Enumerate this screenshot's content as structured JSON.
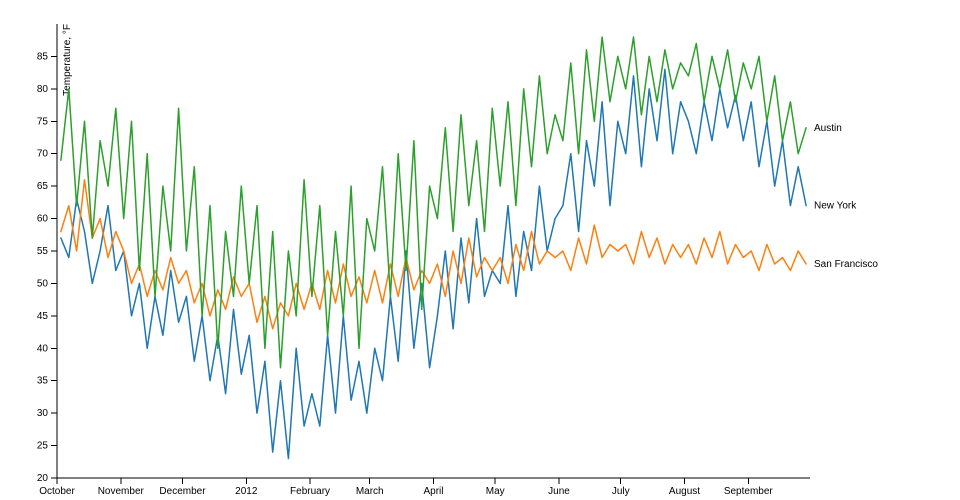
{
  "chart_data": {
    "type": "line",
    "title": "",
    "xlabel": "",
    "ylabel": "Temperature, °F",
    "grid": false,
    "legend": "line-end-labels",
    "y_domain": [
      20,
      90
    ],
    "y_ticks": [
      20,
      25,
      30,
      35,
      40,
      45,
      50,
      55,
      60,
      65,
      70,
      75,
      80,
      85
    ],
    "x_range_days": 366,
    "x_tick_labels": [
      "October",
      "November",
      "December",
      "2012",
      "February",
      "March",
      "April",
      "May",
      "June",
      "July",
      "August",
      "September"
    ],
    "x_tick_days": [
      0,
      31,
      61,
      92,
      123,
      152,
      183,
      213,
      244,
      274,
      305,
      336
    ],
    "series": [
      {
        "name": "New York",
        "color": "#1f77b4",
        "values": [
          57,
          54,
          63,
          58,
          50,
          55,
          62,
          52,
          55,
          45,
          50,
          40,
          48,
          42,
          52,
          44,
          48,
          38,
          45,
          35,
          42,
          33,
          46,
          36,
          42,
          30,
          38,
          24,
          35,
          23,
          40,
          28,
          33,
          28,
          42,
          30,
          45,
          32,
          38,
          30,
          40,
          35,
          48,
          38,
          55,
          40,
          50,
          37,
          45,
          55,
          43,
          57,
          47,
          60,
          48,
          52,
          50,
          62,
          48,
          58,
          52,
          65,
          55,
          60,
          62,
          70,
          58,
          72,
          65,
          78,
          62,
          75,
          70,
          82,
          68,
          80,
          72,
          83,
          70,
          78,
          75,
          70,
          78,
          72,
          80,
          74,
          79,
          72,
          78,
          68,
          75,
          65,
          72,
          62,
          68,
          62
        ]
      },
      {
        "name": "San Francisco",
        "color": "#ff7f0e",
        "values": [
          58,
          62,
          55,
          66,
          57,
          60,
          54,
          58,
          55,
          50,
          53,
          48,
          52,
          49,
          54,
          50,
          52,
          47,
          50,
          45,
          49,
          46,
          51,
          48,
          50,
          44,
          48,
          43,
          47,
          45,
          50,
          46,
          50,
          46,
          52,
          47,
          53,
          48,
          51,
          47,
          52,
          47,
          53,
          48,
          54,
          49,
          52,
          50,
          53,
          48,
          55,
          50,
          57,
          51,
          54,
          52,
          54,
          50,
          56,
          52,
          58,
          53,
          55,
          54,
          55,
          52,
          57,
          53,
          59,
          54,
          56,
          55,
          56,
          53,
          58,
          54,
          57,
          53,
          56,
          54,
          56,
          53,
          57,
          54,
          58,
          53,
          56,
          54,
          55,
          52,
          56,
          53,
          54,
          52,
          55,
          53
        ]
      },
      {
        "name": "Austin",
        "color": "#2ca02c",
        "values": [
          69,
          80,
          62,
          75,
          57,
          72,
          65,
          77,
          60,
          75,
          52,
          70,
          48,
          65,
          55,
          77,
          55,
          68,
          45,
          62,
          40,
          58,
          48,
          65,
          50,
          62,
          40,
          58,
          37,
          55,
          45,
          66,
          48,
          62,
          42,
          58,
          45,
          65,
          40,
          60,
          55,
          68,
          48,
          70,
          52,
          72,
          46,
          65,
          60,
          74,
          58,
          76,
          62,
          72,
          58,
          77,
          65,
          78,
          62,
          80,
          68,
          82,
          70,
          76,
          72,
          84,
          70,
          86,
          75,
          88,
          78,
          85,
          80,
          88,
          76,
          85,
          78,
          86,
          80,
          84,
          82,
          87,
          78,
          85,
          80,
          86,
          78,
          84,
          80,
          85,
          75,
          82,
          72,
          78,
          70,
          74
        ]
      }
    ]
  }
}
